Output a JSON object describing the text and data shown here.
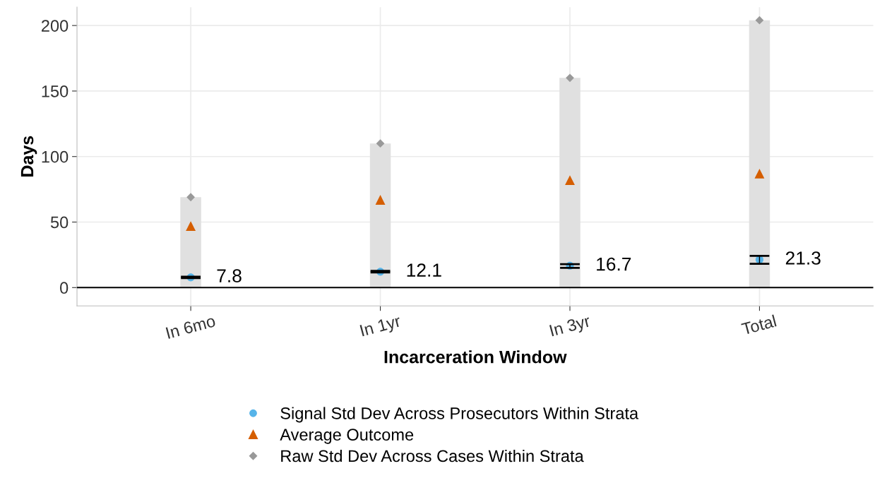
{
  "chart_data": {
    "type": "scatter",
    "xlabel": "Incarceration Window",
    "ylabel": "Days",
    "categories": [
      "In 6mo",
      "In 1yr",
      "In 3yr",
      "Total"
    ],
    "series": [
      {
        "type": "bar",
        "color": "#e0e0e0",
        "values": [
          69,
          110,
          160,
          204
        ]
      },
      {
        "name": "Signal Std Dev Across Prosecutors Within Strata",
        "color": "#56b4e9",
        "marker": "circle",
        "values": [
          7.8,
          12.1,
          16.7,
          21.3
        ],
        "errors": [
          [
            7.3,
            8.3
          ],
          [
            11.5,
            12.7
          ],
          [
            15.0,
            17.9
          ],
          [
            18.1,
            24.2
          ]
        ],
        "value_labels": [
          "7.8",
          "12.1",
          "16.7",
          "21.3"
        ]
      },
      {
        "name": "Average Outcome",
        "color": "#d55e00",
        "marker": "triangle",
        "values": [
          47,
          67,
          82,
          87
        ]
      },
      {
        "name": "Raw Std Dev Across Cases Within Strata",
        "color": "#999999",
        "marker": "diamond",
        "values": [
          69,
          110,
          160,
          204
        ]
      }
    ],
    "ylim": [
      -14,
      214
    ],
    "yticks": [
      0,
      50,
      100,
      150,
      200
    ],
    "ref_lines": [
      {
        "axis": "y",
        "value": 0,
        "color": "#000000"
      }
    ],
    "grid": true,
    "legend": "bottom"
  }
}
